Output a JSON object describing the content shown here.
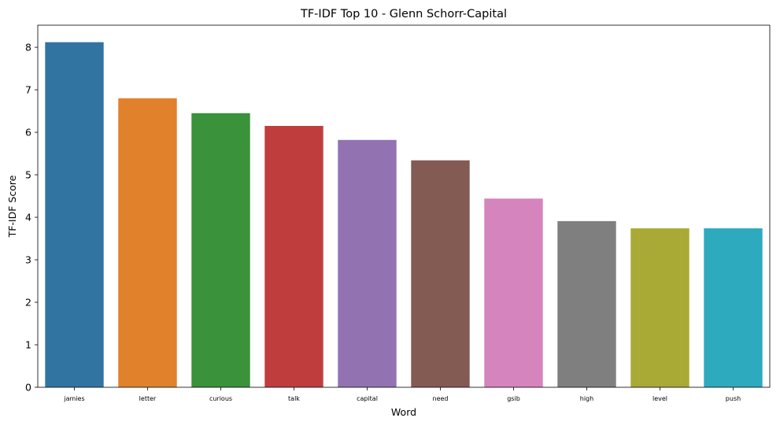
{
  "chart_data": {
    "type": "bar",
    "title": "TF-IDF Top 10 - Glenn Schorr-Capital",
    "xlabel": "Word",
    "ylabel": "TF-IDF Score",
    "categories": [
      "jamies",
      "letter",
      "curious",
      "talk",
      "capital",
      "need",
      "gsib",
      "high",
      "level",
      "push"
    ],
    "values": [
      8.12,
      6.8,
      6.45,
      6.15,
      5.82,
      5.34,
      4.44,
      3.91,
      3.74,
      3.74
    ],
    "colors": [
      "#3274a1",
      "#e1812c",
      "#3a923a",
      "#c03d3e",
      "#9372b2",
      "#845b53",
      "#d684bd",
      "#7f7f7f",
      "#a9aa35",
      "#2eaabe"
    ],
    "ylim": [
      0,
      8.52
    ],
    "yticks": [
      "0",
      "1",
      "2",
      "3",
      "4",
      "5",
      "6",
      "7",
      "8"
    ],
    "grid": false,
    "legend": false
  }
}
